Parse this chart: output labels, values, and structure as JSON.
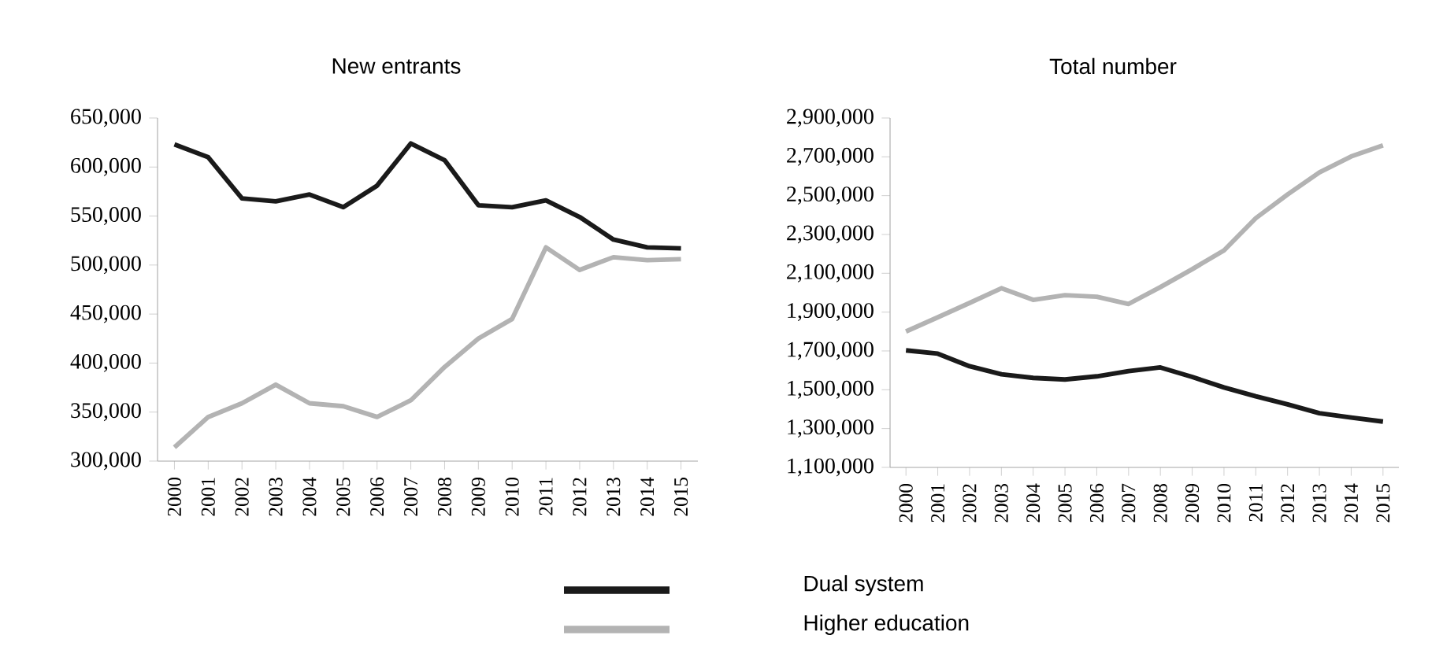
{
  "chart_data": [
    {
      "type": "line",
      "title": "New entrants",
      "categories": [
        "2000",
        "2001",
        "2002",
        "2003",
        "2004",
        "2005",
        "2006",
        "2007",
        "2008",
        "2009",
        "2010",
        "2011",
        "2012",
        "2013",
        "2014",
        "2015"
      ],
      "series": [
        {
          "name": "Dual system",
          "color": "#1a1a1a",
          "values": [
            623000,
            610000,
            568000,
            565000,
            572000,
            559000,
            581000,
            624000,
            607000,
            561000,
            559000,
            566000,
            549000,
            526000,
            518000,
            517000
          ]
        },
        {
          "name": "Higher education",
          "color": "#b3b3b3",
          "values": [
            314000,
            345000,
            359000,
            378000,
            359000,
            356000,
            345000,
            362000,
            396000,
            425000,
            445000,
            518000,
            495000,
            508000,
            505000,
            506000
          ]
        }
      ],
      "ylim": [
        300000,
        650000
      ],
      "yticks": [
        {
          "value": 300000,
          "label": "300,000"
        },
        {
          "value": 350000,
          "label": "350,000"
        },
        {
          "value": 400000,
          "label": "400,000"
        },
        {
          "value": 450000,
          "label": "450,000"
        },
        {
          "value": 500000,
          "label": "500,000"
        },
        {
          "value": 550000,
          "label": "550,000"
        },
        {
          "value": 600000,
          "label": "600,000"
        },
        {
          "value": 650000,
          "label": "650,000"
        }
      ],
      "grid": false,
      "legend": "bottom"
    },
    {
      "type": "line",
      "title": "Total number",
      "categories": [
        "2000",
        "2001",
        "2002",
        "2003",
        "2004",
        "2005",
        "2006",
        "2007",
        "2008",
        "2009",
        "2010",
        "2011",
        "2012",
        "2013",
        "2014",
        "2015"
      ],
      "series": [
        {
          "color": "#1a1a1a",
          "values": [
            1703000,
            1686000,
            1621000,
            1580000,
            1561000,
            1553000,
            1569000,
            1596000,
            1615000,
            1566000,
            1512000,
            1466000,
            1425000,
            1379000,
            1357000,
            1336000
          ]
        },
        {
          "color": "#b3b3b3",
          "values": [
            1800000,
            1873000,
            1947000,
            2023000,
            1963000,
            1987000,
            1979000,
            1942000,
            2029000,
            2121000,
            2218000,
            2384000,
            2506000,
            2620000,
            2702000,
            2759000
          ]
        }
      ],
      "ylim": [
        1100000,
        2900000
      ],
      "yticks": [
        {
          "value": 1100000,
          "label": "1,100,000"
        },
        {
          "value": 1300000,
          "label": "1,300,000"
        },
        {
          "value": 1500000,
          "label": "1,500,000"
        },
        {
          "value": 1700000,
          "label": "1,700,000"
        },
        {
          "value": 1900000,
          "label": "1,900,000"
        },
        {
          "value": 2100000,
          "label": "2,100,000"
        },
        {
          "value": 2300000,
          "label": "2,300,000"
        },
        {
          "value": 2500000,
          "label": "2,500,000"
        },
        {
          "value": 2700000,
          "label": "2,700,000"
        },
        {
          "value": 2900000,
          "label": "2,900,000"
        }
      ],
      "grid": false
    }
  ]
}
